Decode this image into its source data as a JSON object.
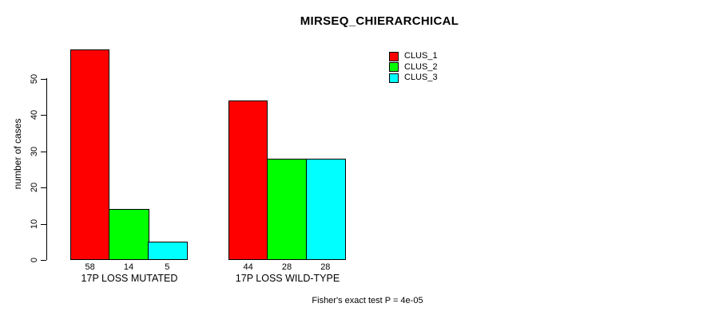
{
  "chart_data": {
    "type": "bar",
    "title": "MIRSEQ_CHIERARCHICAL",
    "xlabel": "",
    "ylabel": "number of cases",
    "categories": [
      "17P LOSS MUTATED",
      "17P LOSS WILD-TYPE"
    ],
    "series": [
      {
        "name": "CLUS_1",
        "color": "#FF0000",
        "values": [
          58,
          44
        ]
      },
      {
        "name": "CLUS_2",
        "color": "#00FF00",
        "values": [
          14,
          28
        ]
      },
      {
        "name": "CLUS_3",
        "color": "#00FFFF",
        "values": [
          5,
          28
        ]
      }
    ],
    "bar_value_labels_shown": true,
    "y_ticks": [
      0,
      10,
      20,
      30,
      40,
      50
    ],
    "ylim": [
      0,
      58
    ],
    "grid": false,
    "legend_position": "top-right",
    "annotation": "Fisher's exact test P = 4e-05",
    "background_color": "#FFFFFF",
    "axis_color": "#000000"
  }
}
